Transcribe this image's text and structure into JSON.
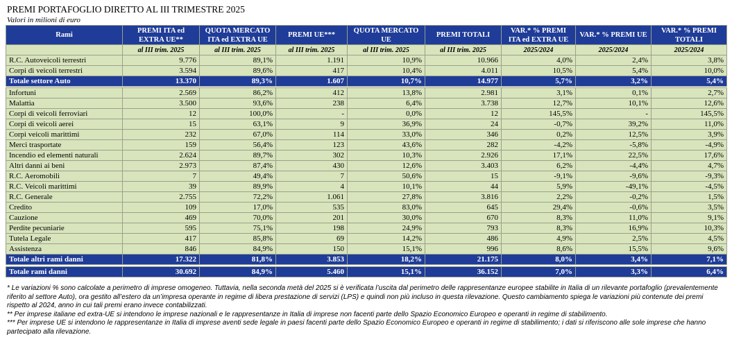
{
  "header": {
    "title": "PREMI PORTAFOGLIO DIRETTO AL III TRIMESTRE 2025",
    "subtitle": "Valori in milioni di euro"
  },
  "table": {
    "columns": [
      "Rami",
      "PREMI ITA ed EXTRA UE**",
      "QUOTA MERCATO ITA ed EXTRA UE",
      "PREMI UE***",
      "QUOTA MERCATO UE",
      "PREMI TOTALI",
      "VAR.* % PREMI ITA ed EXTRA UE",
      "VAR.* % PREMI UE",
      "VAR.* % PREMI TOTALI"
    ],
    "subheaders": [
      "al III trim. 2025",
      "al III trim. 2025",
      "al III trim. 2025",
      "al III trim. 2025",
      "al III trim. 2025",
      "2025/2024",
      "2025/2024",
      "2025/2024"
    ],
    "sections": [
      {
        "rows": [
          [
            "R.C. Autoveicoli terrestri",
            "9.776",
            "89,1%",
            "1.191",
            "10,9%",
            "10.966",
            "4,0%",
            "2,4%",
            "3,8%"
          ],
          [
            "Corpi di veicoli terrestri",
            "3.594",
            "89,6%",
            "417",
            "10,4%",
            "4.011",
            "10,5%",
            "5,4%",
            "10,0%"
          ]
        ],
        "total": [
          "Totale settore Auto",
          "13.370",
          "89,3%",
          "1.607",
          "10,7%",
          "14.977",
          "5,7%",
          "3,2%",
          "5,4%"
        ]
      },
      {
        "rows": [
          [
            "Infortuni",
            "2.569",
            "86,2%",
            "412",
            "13,8%",
            "2.981",
            "3,1%",
            "0,1%",
            "2,7%"
          ],
          [
            "Malattia",
            "3.500",
            "93,6%",
            "238",
            "6,4%",
            "3.738",
            "12,7%",
            "10,1%",
            "12,6%"
          ],
          [
            "Corpi di veicoli ferroviari",
            "12",
            "100,0%",
            "-",
            "0,0%",
            "12",
            "145,5%",
            "-",
            "145,5%"
          ],
          [
            "Corpi di veicoli aerei",
            "15",
            "63,1%",
            "9",
            "36,9%",
            "24",
            "-0,7%",
            "39,2%",
            "11,0%"
          ],
          [
            "Corpi veicoli marittimi",
            "232",
            "67,0%",
            "114",
            "33,0%",
            "346",
            "0,2%",
            "12,5%",
            "3,9%"
          ],
          [
            "Merci trasportate",
            "159",
            "56,4%",
            "123",
            "43,6%",
            "282",
            "-4,2%",
            "-5,8%",
            "-4,9%"
          ],
          [
            "Incendio ed elementi naturali",
            "2.624",
            "89,7%",
            "302",
            "10,3%",
            "2.926",
            "17,1%",
            "22,5%",
            "17,6%"
          ],
          [
            "Altri danni ai beni",
            "2.973",
            "87,4%",
            "430",
            "12,6%",
            "3.403",
            "6,2%",
            "-4,4%",
            "4,7%"
          ],
          [
            "R.C. Aeromobili",
            "7",
            "49,4%",
            "7",
            "50,6%",
            "15",
            "-9,1%",
            "-9,6%",
            "-9,3%"
          ],
          [
            "R.C. Veicoli marittimi",
            "39",
            "89,9%",
            "4",
            "10,1%",
            "44",
            "5,9%",
            "-49,1%",
            "-4,5%"
          ],
          [
            "R.C. Generale",
            "2.755",
            "72,2%",
            "1.061",
            "27,8%",
            "3.816",
            "2,2%",
            "-0,2%",
            "1,5%"
          ],
          [
            "Credito",
            "109",
            "17,0%",
            "535",
            "83,0%",
            "645",
            "29,4%",
            "-0,6%",
            "3,5%"
          ],
          [
            "Cauzione",
            "469",
            "70,0%",
            "201",
            "30,0%",
            "670",
            "8,3%",
            "11,0%",
            "9,1%"
          ],
          [
            "Perdite pecuniarie",
            "595",
            "75,1%",
            "198",
            "24,9%",
            "793",
            "8,3%",
            "16,9%",
            "10,3%"
          ],
          [
            "Tutela Legale",
            "417",
            "85,8%",
            "69",
            "14,2%",
            "486",
            "4,9%",
            "2,5%",
            "4,5%"
          ],
          [
            "Assistenza",
            "846",
            "84,9%",
            "150",
            "15,1%",
            "996",
            "8,6%",
            "15,5%",
            "9,6%"
          ]
        ],
        "total": [
          "Totale altri rami danni",
          "17.322",
          "81,8%",
          "3.853",
          "18,2%",
          "21.175",
          "8,0%",
          "3,4%",
          "7,1%"
        ]
      }
    ],
    "grand_total": [
      "Totale rami danni",
      "30.692",
      "84,9%",
      "5.460",
      "15,1%",
      "36.152",
      "7,0%",
      "3,3%",
      "6,4%"
    ]
  },
  "notes": [
    "* Le variazioni % sono calcolate a perimetro di imprese omogeneo. Tuttavia, nella seconda metà del 2025 si è verificata l’uscita dal perimetro delle rappresentanze europee stabilite in Italia di un rilevante portafoglio (prevalentemente riferito al settore Auto), ora gestito all’estero da un’impresa operante in regime di libera prestazione di servizi (LPS) e quindi non più incluso in questa rilevazione. Questo cambiamento spiega le variazioni più contenute dei premi rispetto al 2024, anno in cui tali premi erano invece contabilizzati.",
    "** Per imprese italiane ed extra-UE si intendono le imprese nazionali e le rappresentanze in Italia di imprese non facenti parte dello Spazio Economico Europeo e operanti in regime di stabilimento.",
    "*** Per imprese UE si intendono le rappresentanze in Italia di imprese aventi sede legale in paesi facenti parte dello Spazio Economico Europeo e operanti in regime di stabilimento; i dati si riferiscono alle sole imprese che hanno partecipato alla rilevazione."
  ]
}
